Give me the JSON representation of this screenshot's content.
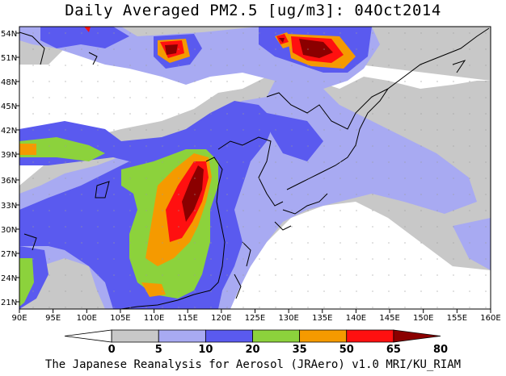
{
  "title": "Daily Averaged PM2.5 [ug/m3]: 04Oct2014",
  "credit": "The Japanese Reanalysis for Aerosol (JRAero) v1.0 MRI/KU_RIAM",
  "x_ticks": [
    "90E",
    "95E",
    "100E",
    "105E",
    "110E",
    "115E",
    "120E",
    "125E",
    "130E",
    "135E",
    "140E",
    "145E",
    "150E",
    "155E",
    "160E"
  ],
  "y_ticks": [
    "54N",
    "51N",
    "48N",
    "45N",
    "42N",
    "39N",
    "36N",
    "33N",
    "30N",
    "27N",
    "24N",
    "21N"
  ],
  "colorbar": {
    "labels": [
      "0",
      "5",
      "10",
      "20",
      "35",
      "50",
      "65",
      "80"
    ],
    "colors": [
      "#ffffff",
      "#c8c8c8",
      "#a8aaf2",
      "#5a5aef",
      "#8cd23c",
      "#f59a00",
      "#ff1010",
      "#8b0000"
    ]
  }
}
